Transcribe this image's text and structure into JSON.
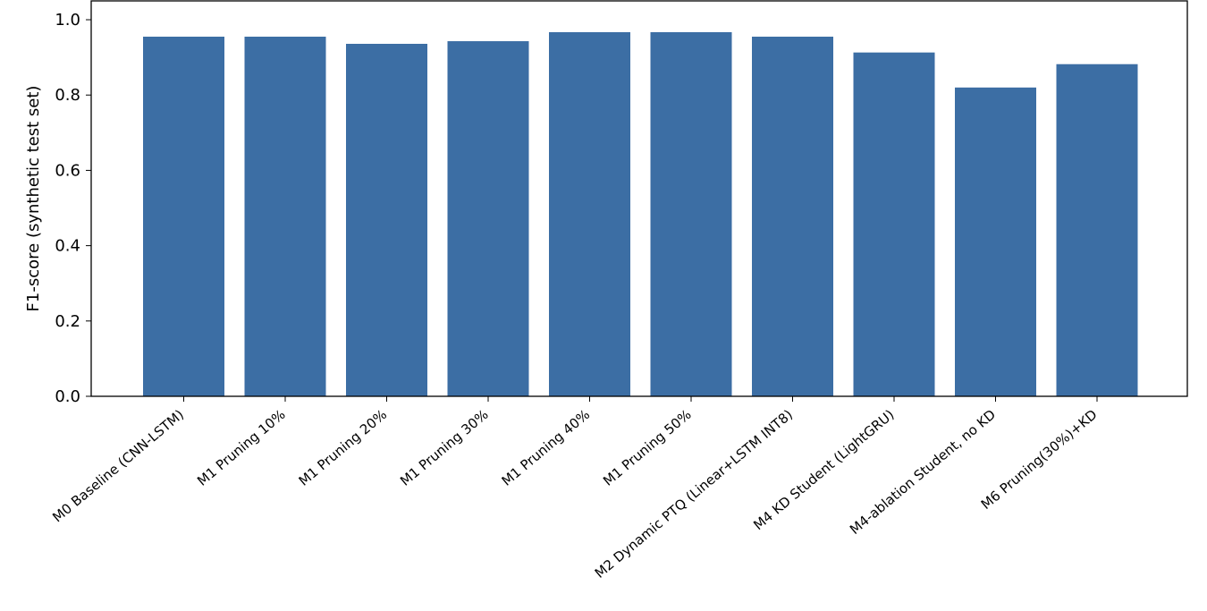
{
  "chart_data": {
    "type": "bar",
    "title": "",
    "xlabel": "",
    "ylabel": "F1-score (synthetic test set)",
    "ylim": [
      0,
      1.05
    ],
    "yticks": [
      0.0,
      0.2,
      0.4,
      0.6,
      0.8,
      1.0
    ],
    "ytick_labels": [
      "0.0",
      "0.2",
      "0.4",
      "0.6",
      "0.8",
      "1.0"
    ],
    "grid": false,
    "bar_color": "#3c6ea4",
    "categories": [
      "M0 Baseline (CNN-LSTM)",
      "M1 Pruning 10%",
      "M1 Pruning 20%",
      "M1 Pruning 30%",
      "M1 Pruning 40%",
      "M1 Pruning 50%",
      "M2 Dynamic PTQ (Linear+LSTM INT8)",
      "M4 KD Student (LightGRU)",
      "M4-ablation Student, no KD",
      "M6 Pruning(30%)+KD"
    ],
    "values": [
      0.955,
      0.955,
      0.936,
      0.943,
      0.967,
      0.967,
      0.955,
      0.913,
      0.82,
      0.882
    ]
  }
}
